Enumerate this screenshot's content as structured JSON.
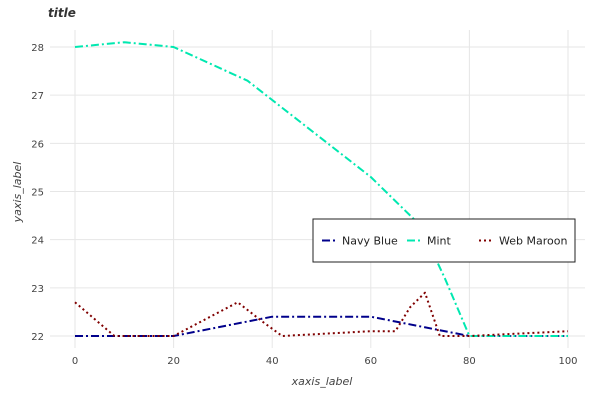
{
  "chart_data": {
    "type": "line",
    "title": "title",
    "xlabel": "xaxis_label",
    "ylabel": "yaxis_label",
    "xlim": [
      0,
      100
    ],
    "ylim": [
      22,
      28.3
    ],
    "x_ticks": [
      0,
      20,
      40,
      60,
      80,
      100
    ],
    "y_ticks": [
      22,
      23,
      24,
      25,
      26,
      27,
      28
    ],
    "grid": true,
    "legend_position": "right",
    "series": [
      {
        "name": "Navy Blue",
        "color": "#00008b",
        "dash": "dash-dot",
        "points": [
          [
            0,
            22.0
          ],
          [
            20,
            22.0
          ],
          [
            35,
            22.3
          ],
          [
            40,
            22.4
          ],
          [
            60,
            22.4
          ],
          [
            80,
            22.0
          ],
          [
            100,
            22.0
          ]
        ]
      },
      {
        "name": "Mint",
        "color": "#00e8b0",
        "dash": "dash-dot",
        "points": [
          [
            0,
            28.0
          ],
          [
            10,
            28.1
          ],
          [
            20,
            28.0
          ],
          [
            35,
            27.3
          ],
          [
            60,
            25.3
          ],
          [
            70,
            24.3
          ],
          [
            75,
            23.2
          ],
          [
            80,
            22.0
          ],
          [
            100,
            22.0
          ]
        ]
      },
      {
        "name": "Web Maroon",
        "color": "#800000",
        "dash": "dot",
        "points": [
          [
            0,
            22.7
          ],
          [
            8,
            22.0
          ],
          [
            20,
            22.0
          ],
          [
            33,
            22.7
          ],
          [
            38,
            22.3
          ],
          [
            42,
            22.0
          ],
          [
            60,
            22.1
          ],
          [
            65,
            22.1
          ],
          [
            68,
            22.6
          ],
          [
            71,
            22.9
          ],
          [
            74,
            22.0
          ],
          [
            80,
            22.0
          ],
          [
            100,
            22.1
          ]
        ]
      }
    ]
  }
}
